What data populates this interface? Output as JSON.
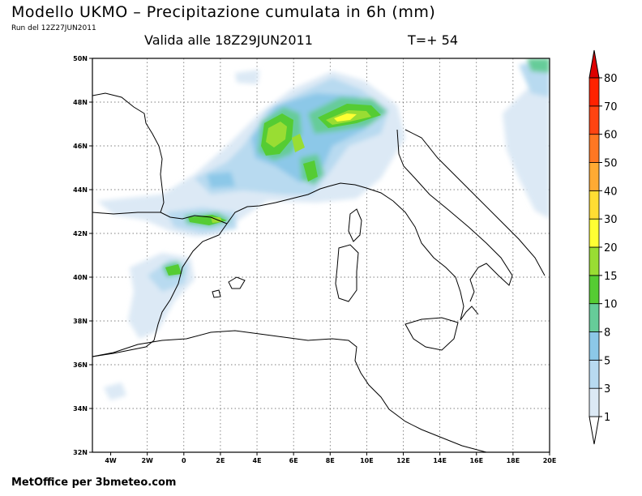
{
  "header": {
    "title": "Modello UKMO – Precipitazione cumulata in 6h (mm)",
    "run": "Run del 12Z27JUN2011",
    "valid": "Valida alle 18Z29JUN2011",
    "tstep": "T=+ 54"
  },
  "footer": {
    "credit": "MetOffice per 3bmeteo.com"
  },
  "map": {
    "lon_range": [
      -5,
      20
    ],
    "lat_range": [
      32,
      50
    ],
    "lat_ticks": [
      "32N",
      "34N",
      "36N",
      "38N",
      "40N",
      "42N",
      "44N",
      "46N",
      "48N",
      "50N"
    ],
    "lon_ticks": [
      "4W",
      "2W",
      "0",
      "2E",
      "4E",
      "6E",
      "8E",
      "10E",
      "12E",
      "14E",
      "16E",
      "18E",
      "20E"
    ],
    "grid": true
  },
  "legend": {
    "levels": [
      "1",
      "3",
      "5",
      "8",
      "10",
      "15",
      "20",
      "30",
      "40",
      "50",
      "60",
      "70",
      "80"
    ],
    "colors": [
      "#dce9f5",
      "#b8daf0",
      "#8cc8e8",
      "#66cc99",
      "#55cc33",
      "#99dd33",
      "#ffff33",
      "#ffdd33",
      "#ffaa33",
      "#ff7722",
      "#ff4411",
      "#ff2200",
      "#dd0000"
    ]
  }
}
